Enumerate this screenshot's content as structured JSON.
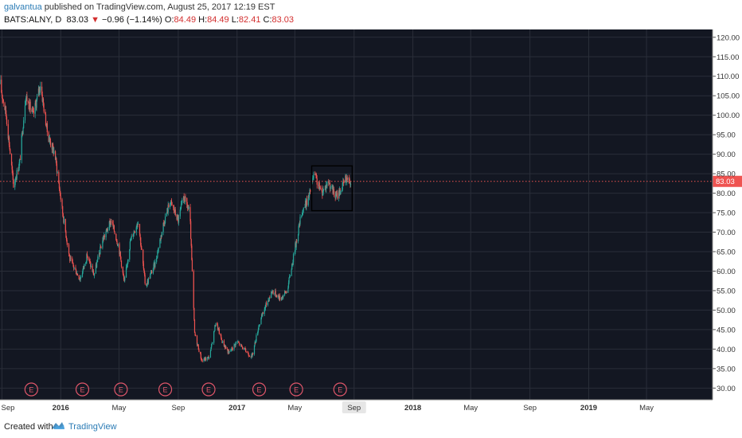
{
  "header": {
    "publisher": "galvantua",
    "published_text": " published on TradingView.com, August 25, 2017 12:19 EST",
    "symbol": "BATS:ALNY, D",
    "last_price": "83.03",
    "change_arrow": "▼",
    "change": "−0.96 (−1.14%)",
    "open_label": "O:",
    "open": "84.49",
    "high_label": "H:",
    "high": "84.49",
    "low_label": "L:",
    "low": "82.41",
    "close_label": "C:",
    "close": "83.03"
  },
  "footer": {
    "created_with": "Created with",
    "brand": "TradingView"
  },
  "colors": {
    "background": "#131722",
    "grid": "#2a2e39",
    "up": "#26a69a",
    "down": "#ef5350",
    "price_line": "#ef5350",
    "earnings": "#e0566a",
    "brand": "#2a7bb5"
  },
  "chart_data": {
    "type": "candlestick",
    "symbol": "BATS:ALNY",
    "interval": "D",
    "y_axis": {
      "ticks": [
        "120.00",
        "115.00",
        "110.00",
        "105.00",
        "100.00",
        "95.00",
        "90.00",
        "85.00",
        "80.00",
        "75.00",
        "70.00",
        "65.00",
        "60.00",
        "55.00",
        "50.00",
        "45.00",
        "40.00",
        "35.00",
        "30.00"
      ],
      "range": [
        27,
        122
      ]
    },
    "x_axis": {
      "ticks": [
        "Sep",
        "2016",
        "May",
        "Sep",
        "2017",
        "May",
        "Sep",
        "2018",
        "May",
        "Sep",
        "2019",
        "May"
      ],
      "tick_dates": [
        "2015-09",
        "2016-01",
        "2016-05",
        "2016-09",
        "2017-01",
        "2017-05",
        "2017-09",
        "2018-01",
        "2018-05",
        "2018-09",
        "2019-01",
        "2019-05"
      ],
      "bold_ticks": [
        "2016",
        "2017",
        "2018",
        "2019"
      ],
      "highlight_tick": "Sep",
      "highlight_date": "2017-09",
      "range": [
        "2015-08-28",
        "2019-09-15"
      ]
    },
    "current_price": 83.03,
    "earnings_marker_label": "E",
    "earnings_dates": [
      "2015-11-01",
      "2016-02-15",
      "2016-05-05",
      "2016-08-05",
      "2016-11-03",
      "2017-02-16",
      "2017-05-04",
      "2017-08-03"
    ],
    "price_path": [
      [
        "2015-08-28",
        108
      ],
      [
        "2015-09-10",
        100
      ],
      [
        "2015-09-25",
        82
      ],
      [
        "2015-10-08",
        88
      ],
      [
        "2015-10-20",
        105
      ],
      [
        "2015-11-05",
        100
      ],
      [
        "2015-11-20",
        108
      ],
      [
        "2015-12-05",
        95
      ],
      [
        "2015-12-20",
        90
      ],
      [
        "2016-01-05",
        75
      ],
      [
        "2016-01-20",
        63
      ],
      [
        "2016-02-10",
        58
      ],
      [
        "2016-02-25",
        64
      ],
      [
        "2016-03-10",
        59
      ],
      [
        "2016-03-28",
        68
      ],
      [
        "2016-04-15",
        73
      ],
      [
        "2016-05-01",
        66
      ],
      [
        "2016-05-12",
        57
      ],
      [
        "2016-05-25",
        68
      ],
      [
        "2016-06-10",
        73
      ],
      [
        "2016-06-25",
        56
      ],
      [
        "2016-07-15",
        62
      ],
      [
        "2016-08-01",
        72
      ],
      [
        "2016-08-15",
        78
      ],
      [
        "2016-09-01",
        73
      ],
      [
        "2016-09-12",
        79
      ],
      [
        "2016-09-25",
        75
      ],
      [
        "2016-10-05",
        44
      ],
      [
        "2016-10-20",
        37
      ],
      [
        "2016-11-05",
        38
      ],
      [
        "2016-11-18",
        47
      ],
      [
        "2016-12-01",
        42
      ],
      [
        "2016-12-15",
        39
      ],
      [
        "2017-01-01",
        42
      ],
      [
        "2017-01-15",
        40
      ],
      [
        "2017-02-01",
        38
      ],
      [
        "2017-02-15",
        46
      ],
      [
        "2017-03-01",
        51
      ],
      [
        "2017-03-15",
        55
      ],
      [
        "2017-04-01",
        53
      ],
      [
        "2017-04-15",
        55
      ],
      [
        "2017-04-30",
        65
      ],
      [
        "2017-05-15",
        75
      ],
      [
        "2017-05-30",
        79
      ],
      [
        "2017-06-10",
        85
      ],
      [
        "2017-06-25",
        80
      ],
      [
        "2017-07-10",
        83
      ],
      [
        "2017-07-25",
        79
      ],
      [
        "2017-08-05",
        81
      ],
      [
        "2017-08-15",
        84
      ],
      [
        "2017-08-25",
        83.03
      ]
    ],
    "drawing": {
      "type": "parallel-channel",
      "upper": [
        [
          "2017-06-05",
          87
        ],
        [
          "2017-08-28",
          87
        ]
      ],
      "lower": [
        [
          "2017-06-05",
          75.5
        ],
        [
          "2017-08-28",
          75.5
        ]
      ]
    }
  }
}
